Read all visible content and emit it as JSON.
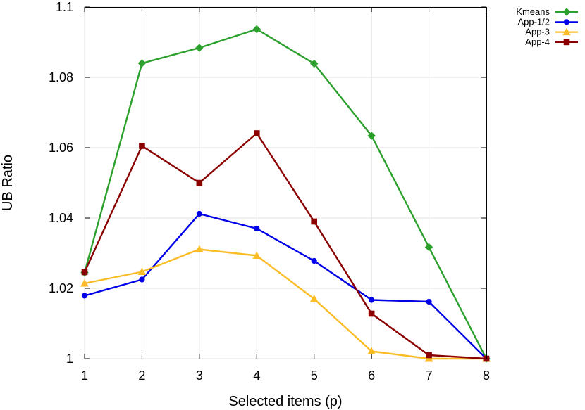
{
  "chart_data": {
    "type": "line",
    "title": "",
    "xlabel": "Selected items (p)",
    "ylabel": "UB Ratio",
    "x": [
      1,
      2,
      3,
      4,
      5,
      6,
      7,
      8
    ],
    "xlim": [
      1,
      8
    ],
    "ylim": [
      1,
      1.1
    ],
    "x_ticks": [
      1,
      2,
      3,
      4,
      5,
      6,
      7,
      8
    ],
    "y_ticks": [
      1,
      1.02,
      1.04,
      1.06,
      1.08,
      1.1
    ],
    "x_tick_labels": [
      "1",
      "2",
      "3",
      "4",
      "5",
      "6",
      "7",
      "8"
    ],
    "y_tick_labels": [
      "1",
      "1.02",
      "1.04",
      "1.06",
      "1.08",
      "1.1"
    ],
    "grid": true,
    "legend_position": "outside-top-right",
    "series": [
      {
        "name": "Kmeans",
        "color": "#2ca02c",
        "marker": "diamond",
        "values": [
          1.0245,
          1.084,
          1.0884,
          1.0937,
          1.0839,
          1.0634,
          1.0317,
          1.0
        ]
      },
      {
        "name": "App-1/2",
        "color": "#0000e8",
        "marker": "circle",
        "values": [
          1.0179,
          1.0225,
          1.0412,
          1.037,
          1.0278,
          1.0167,
          1.0162,
          1.0
        ]
      },
      {
        "name": "App-3",
        "color": "#fbbd27",
        "marker": "triangle",
        "values": [
          1.0214,
          1.0247,
          1.0311,
          1.0293,
          1.017,
          1.0021,
          1.0,
          1.0
        ]
      },
      {
        "name": "App-4",
        "color": "#8b0000",
        "marker": "square",
        "values": [
          1.0246,
          1.0605,
          1.05,
          1.0641,
          1.039,
          1.0128,
          1.001,
          1.0
        ]
      }
    ]
  }
}
